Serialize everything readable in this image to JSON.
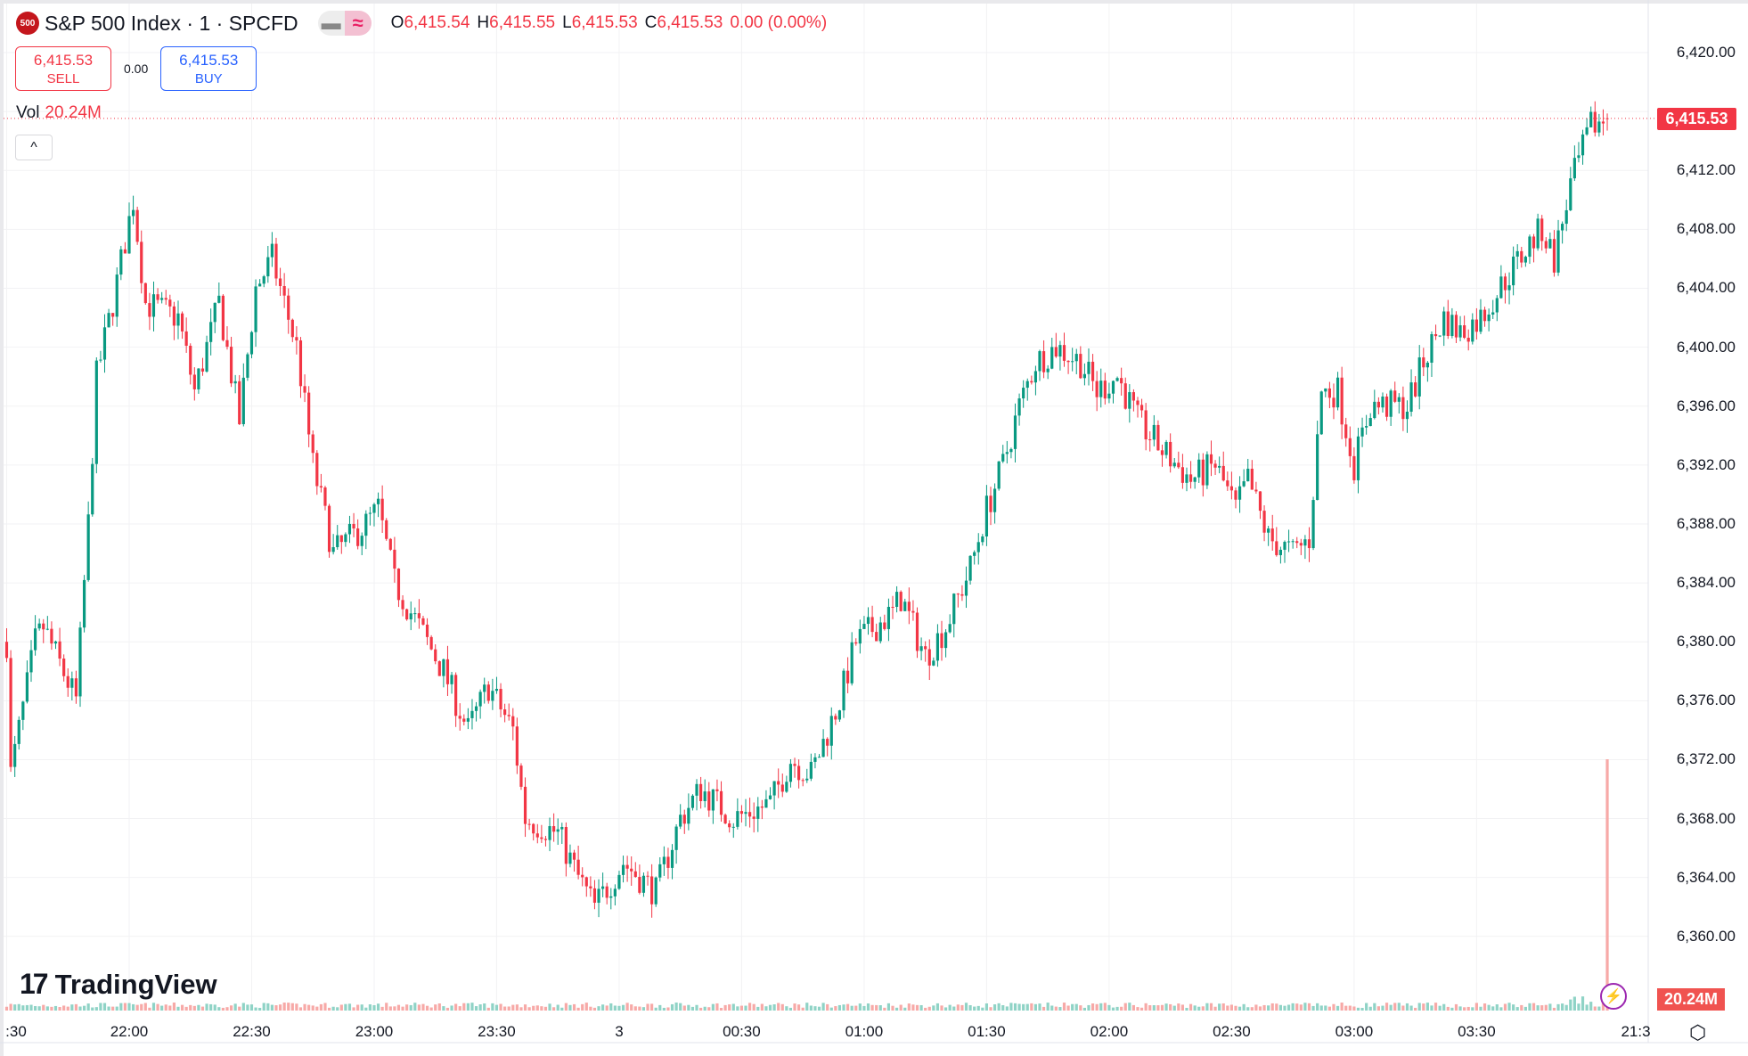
{
  "header": {
    "logo_text": "500",
    "title": "S&P 500 Index · 1 · SPCFD",
    "ohlc": {
      "o_label": "O",
      "o": "6,415.54",
      "h_label": "H",
      "h": "6,415.55",
      "l_label": "L",
      "l": "6,415.53",
      "c_label": "C",
      "c": "6,415.53",
      "change": "0.00 (0.00%)"
    }
  },
  "trade": {
    "sell_price": "6,415.53",
    "sell_label": "SELL",
    "spread": "0.00",
    "buy_price": "6,415.53",
    "buy_label": "BUY"
  },
  "volume": {
    "label": "Vol",
    "value": "20.24M"
  },
  "watermark": "TradingView",
  "axis": {
    "last_price": "6,415.53",
    "last_volume": "20.24M",
    "time_cursor": "21:3"
  },
  "colors": {
    "up": "#089981",
    "down": "#f23645",
    "vol_up": "#8fd3c6",
    "vol_down": "#f7a9a7",
    "grid": "#f2f2f4"
  },
  "chart_data": {
    "type": "candlestick",
    "interval_minutes": 1,
    "ylim": [
      6356,
      6422
    ],
    "y_ticks": [
      6420,
      6412,
      6408,
      6404,
      6400,
      6396,
      6392,
      6388,
      6384,
      6380,
      6376,
      6372,
      6368,
      6364,
      6360
    ],
    "y_tick_labels": [
      "6,420.00",
      "6,412.00",
      "6,408.00",
      "6,404.00",
      "6,400.00",
      "6,396.00",
      "6,392.00",
      "6,388.00",
      "6,384.00",
      "6,380.00",
      "6,376.00",
      "6,372.00",
      "6,368.00",
      "6,364.00",
      "6,360.00"
    ],
    "x_tick_labels": [
      ":30",
      "22:00",
      "22:30",
      "23:00",
      "23:30",
      "3",
      "00:30",
      "01:00",
      "01:30",
      "02:00",
      "02:30",
      "03:00",
      "03:30"
    ],
    "x_tick_times": [
      "21:30",
      "22:00",
      "22:30",
      "23:00",
      "23:30",
      "00:00",
      "00:30",
      "01:00",
      "01:30",
      "02:00",
      "02:30",
      "03:00",
      "03:30"
    ],
    "close_path": [
      [
        "21:30",
        6380
      ],
      [
        "21:31",
        6371
      ],
      [
        "21:37",
        6380
      ],
      [
        "21:39",
        6381
      ],
      [
        "21:47",
        6376
      ],
      [
        "21:50",
        6388
      ],
      [
        "21:52",
        6398
      ],
      [
        "21:56",
        6403
      ],
      [
        "22:01",
        6410
      ],
      [
        "22:04",
        6403
      ],
      [
        "22:12",
        6402
      ],
      [
        "22:16",
        6397
      ],
      [
        "22:22",
        6403
      ],
      [
        "22:27",
        6395
      ],
      [
        "22:31",
        6404
      ],
      [
        "22:35",
        6406
      ],
      [
        "22:41",
        6400
      ],
      [
        "22:45",
        6392
      ],
      [
        "22:50",
        6386
      ],
      [
        "22:58",
        6388
      ],
      [
        "23:01",
        6389
      ],
      [
        "23:05",
        6384
      ],
      [
        "23:09",
        6382
      ],
      [
        "23:17",
        6378
      ],
      [
        "23:23",
        6374
      ],
      [
        "23:28",
        6377
      ],
      [
        "23:34",
        6374
      ],
      [
        "23:37",
        6368
      ],
      [
        "23:45",
        6367
      ],
      [
        "23:50",
        6364
      ],
      [
        "23:54",
        6362
      ],
      [
        "00:01",
        6365
      ],
      [
        "00:09",
        6363
      ],
      [
        "00:15",
        6368
      ],
      [
        "00:20",
        6370
      ],
      [
        "00:28",
        6368
      ],
      [
        "00:37",
        6369
      ],
      [
        "00:42",
        6372
      ],
      [
        "00:47",
        6371
      ],
      [
        "00:54",
        6376
      ],
      [
        "00:58",
        6380
      ],
      [
        "01:07",
        6382
      ],
      [
        "01:09",
        6383
      ],
      [
        "01:15",
        6379
      ],
      [
        "01:20",
        6381
      ],
      [
        "01:26",
        6385
      ],
      [
        "01:30",
        6389
      ],
      [
        "01:34",
        6392
      ],
      [
        "01:38",
        6396
      ],
      [
        "01:42",
        6399
      ],
      [
        "01:47",
        6400
      ],
      [
        "01:53",
        6399
      ],
      [
        "01:57",
        6397
      ],
      [
        "02:02",
        6398
      ],
      [
        "02:07",
        6395
      ],
      [
        "02:13",
        6393
      ],
      [
        "02:20",
        6391
      ],
      [
        "02:26",
        6392
      ],
      [
        "02:31",
        6389
      ],
      [
        "02:34",
        6391
      ],
      [
        "02:39",
        6387
      ],
      [
        "02:45",
        6386
      ],
      [
        "02:49",
        6387
      ],
      [
        "02:52",
        6397
      ],
      [
        "02:56",
        6397
      ],
      [
        "03:00",
        6392
      ],
      [
        "03:04",
        6396
      ],
      [
        "03:13",
        6396
      ],
      [
        "03:17",
        6399
      ],
      [
        "03:22",
        6402
      ],
      [
        "03:26",
        6401
      ],
      [
        "03:31",
        6402
      ],
      [
        "03:38",
        6405
      ],
      [
        "03:43",
        6407
      ],
      [
        "03:46",
        6408
      ],
      [
        "03:49",
        6406
      ],
      [
        "03:53",
        6411
      ],
      [
        "03:58",
        6415
      ],
      [
        "04:02",
        6415.53
      ]
    ],
    "last_bar": {
      "open": 6415.54,
      "high": 6415.55,
      "low": 6415.53,
      "close": 6415.53,
      "volume": "20.24M"
    }
  }
}
